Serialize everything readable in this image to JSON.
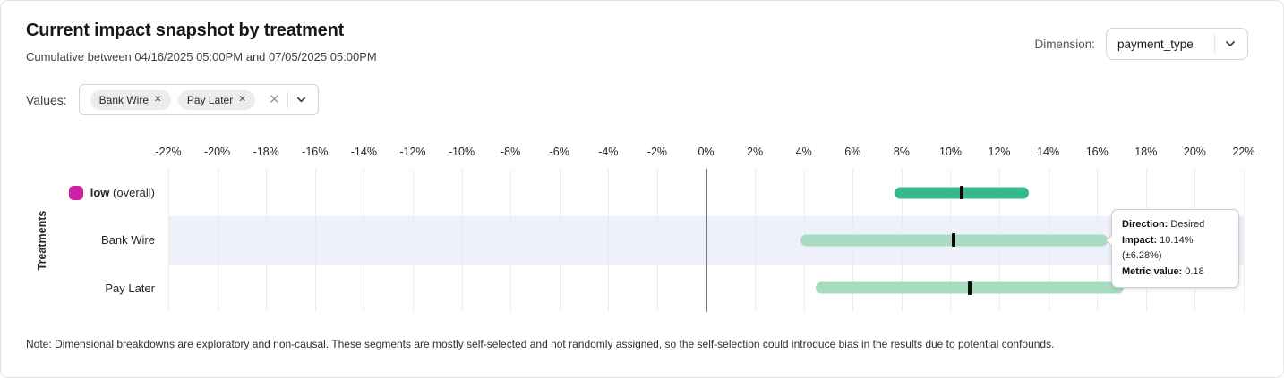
{
  "header": {
    "title": "Current impact snapshot by treatment",
    "subtitle": "Cumulative between 04/16/2025 05:00PM and 07/05/2025 05:00PM",
    "dimension": {
      "label": "Dimension:",
      "selected": "payment_type"
    }
  },
  "values_filter": {
    "label": "Values:",
    "chips": [
      {
        "label": "Bank Wire",
        "remove_icon": "✕"
      },
      {
        "label": "Pay Later",
        "remove_icon": "✕"
      }
    ],
    "clear_icon": "✕"
  },
  "chart_data": {
    "type": "range_bar",
    "ylabel": "Treatments",
    "xlim": [
      -22,
      22
    ],
    "tick_step": 2,
    "tick_suffix": "%",
    "grid": true,
    "zero_line": true,
    "highlight_color": "#eef0fa",
    "rows": [
      {
        "label": "low",
        "suffix": " (overall)",
        "legend_color": "#ce21a2",
        "bar_color": "#35b98b",
        "range_low": 7.7,
        "range_high": 13.2,
        "center": 10.45,
        "highlighted": false
      },
      {
        "label": "Bank Wire",
        "bar_color": "#a8dcc1",
        "range_low": 3.86,
        "range_high": 16.42,
        "center": 10.14,
        "highlighted": true
      },
      {
        "label": "Pay Later",
        "bar_color": "#a8dcc1",
        "range_low": 4.5,
        "range_high": 17.1,
        "center": 10.8,
        "highlighted": false
      }
    ]
  },
  "tooltip": {
    "rows": [
      {
        "label": "Direction:",
        "value": "Desired"
      },
      {
        "label": "Impact:",
        "value": "10.14% (±6.28%)"
      },
      {
        "label": "Metric value:",
        "value": "0.18"
      }
    ]
  },
  "note": "Note: Dimensional breakdowns are exploratory and non-causal. These segments are mostly self-selected and not randomly assigned, so the self-selection could introduce bias in the results due to potential confounds."
}
